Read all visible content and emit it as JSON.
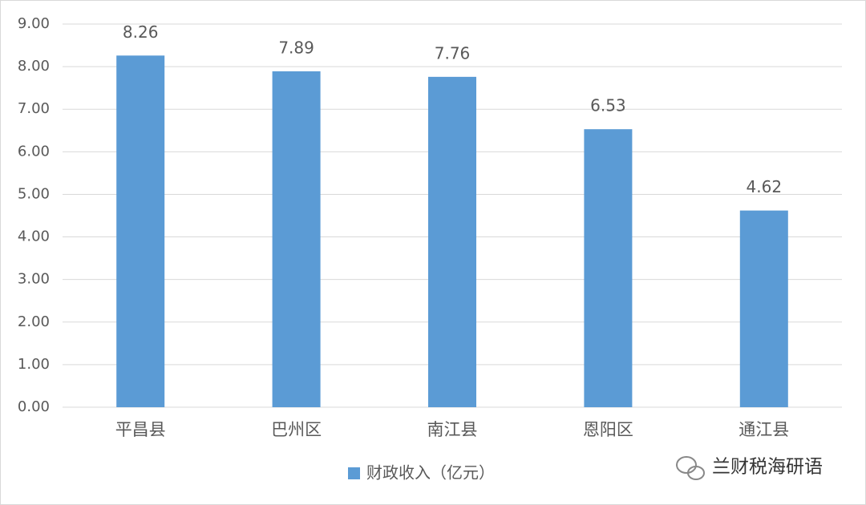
{
  "chart_data": {
    "type": "bar",
    "categories": [
      "平昌县",
      "巴州区",
      "南江县",
      "恩阳区",
      "通江县"
    ],
    "values": [
      8.26,
      7.89,
      7.76,
      6.53,
      4.62
    ],
    "legend": "财政收入（亿元）",
    "color": "#5b9bd5",
    "ylim": [
      0,
      9
    ],
    "yticks": [
      {
        "value": 0,
        "label": "0.00"
      },
      {
        "value": 1,
        "label": "1.00"
      },
      {
        "value": 2,
        "label": "2.00"
      },
      {
        "value": 3,
        "label": "3.00"
      },
      {
        "value": 4,
        "label": "4.00"
      },
      {
        "value": 5,
        "label": "5.00"
      },
      {
        "value": 6,
        "label": "6.00"
      },
      {
        "value": 7,
        "label": "7.00"
      },
      {
        "value": 8,
        "label": "8.00"
      },
      {
        "value": 9,
        "label": "9.00"
      }
    ],
    "grid": true
  },
  "watermark": "兰财税海研语"
}
